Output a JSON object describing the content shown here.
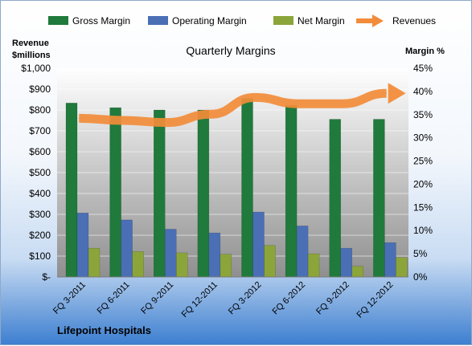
{
  "chart_data": {
    "type": "bar",
    "title": "Quarterly Margins",
    "company": "Lifepoint Hospitals",
    "y_left_label_line1": "Revenue",
    "y_left_label_line2": "$millions",
    "y_right_label": "Margin %",
    "categories": [
      "FQ 3-2011",
      "FQ 6-2011",
      "FQ 9-2011",
      "FQ 12-2011",
      "FQ 3-2012",
      "FQ 6-2012",
      "FQ 9-2012",
      "FQ 12-2012"
    ],
    "left_ticks": [
      "$-",
      "$100",
      "$200",
      "$300",
      "$400",
      "$500",
      "$600",
      "$700",
      "$800",
      "$900",
      "$1,000"
    ],
    "right_ticks": [
      "0%",
      "5%",
      "10%",
      "15%",
      "20%",
      "25%",
      "30%",
      "35%",
      "40%",
      "45%"
    ],
    "y_left_range": [
      0,
      1000
    ],
    "y_right_range": [
      0,
      45
    ],
    "series": [
      {
        "name": "Gross Margin",
        "axis": "right",
        "unit": "%",
        "color": "#1f7a3c",
        "values": [
          37.5,
          36.5,
          36.0,
          36.0,
          38.5,
          37.0,
          34.0,
          34.0
        ]
      },
      {
        "name": "Operating Margin",
        "axis": "right",
        "unit": "%",
        "color": "#4a6fb5",
        "values": [
          13.8,
          12.3,
          10.3,
          9.5,
          14.0,
          11.0,
          6.2,
          7.4
        ]
      },
      {
        "name": "Net Margin",
        "axis": "right",
        "unit": "%",
        "color": "#8ba53a",
        "values": [
          6.2,
          5.5,
          5.2,
          4.9,
          6.8,
          5.0,
          2.3,
          4.2
        ]
      },
      {
        "name": "Revenues",
        "axis": "left",
        "unit": "$millions",
        "color": "#f28c3a",
        "values": [
          760,
          750,
          740,
          780,
          860,
          830,
          830,
          880
        ]
      }
    ],
    "legend_position": "top",
    "grid": true
  }
}
